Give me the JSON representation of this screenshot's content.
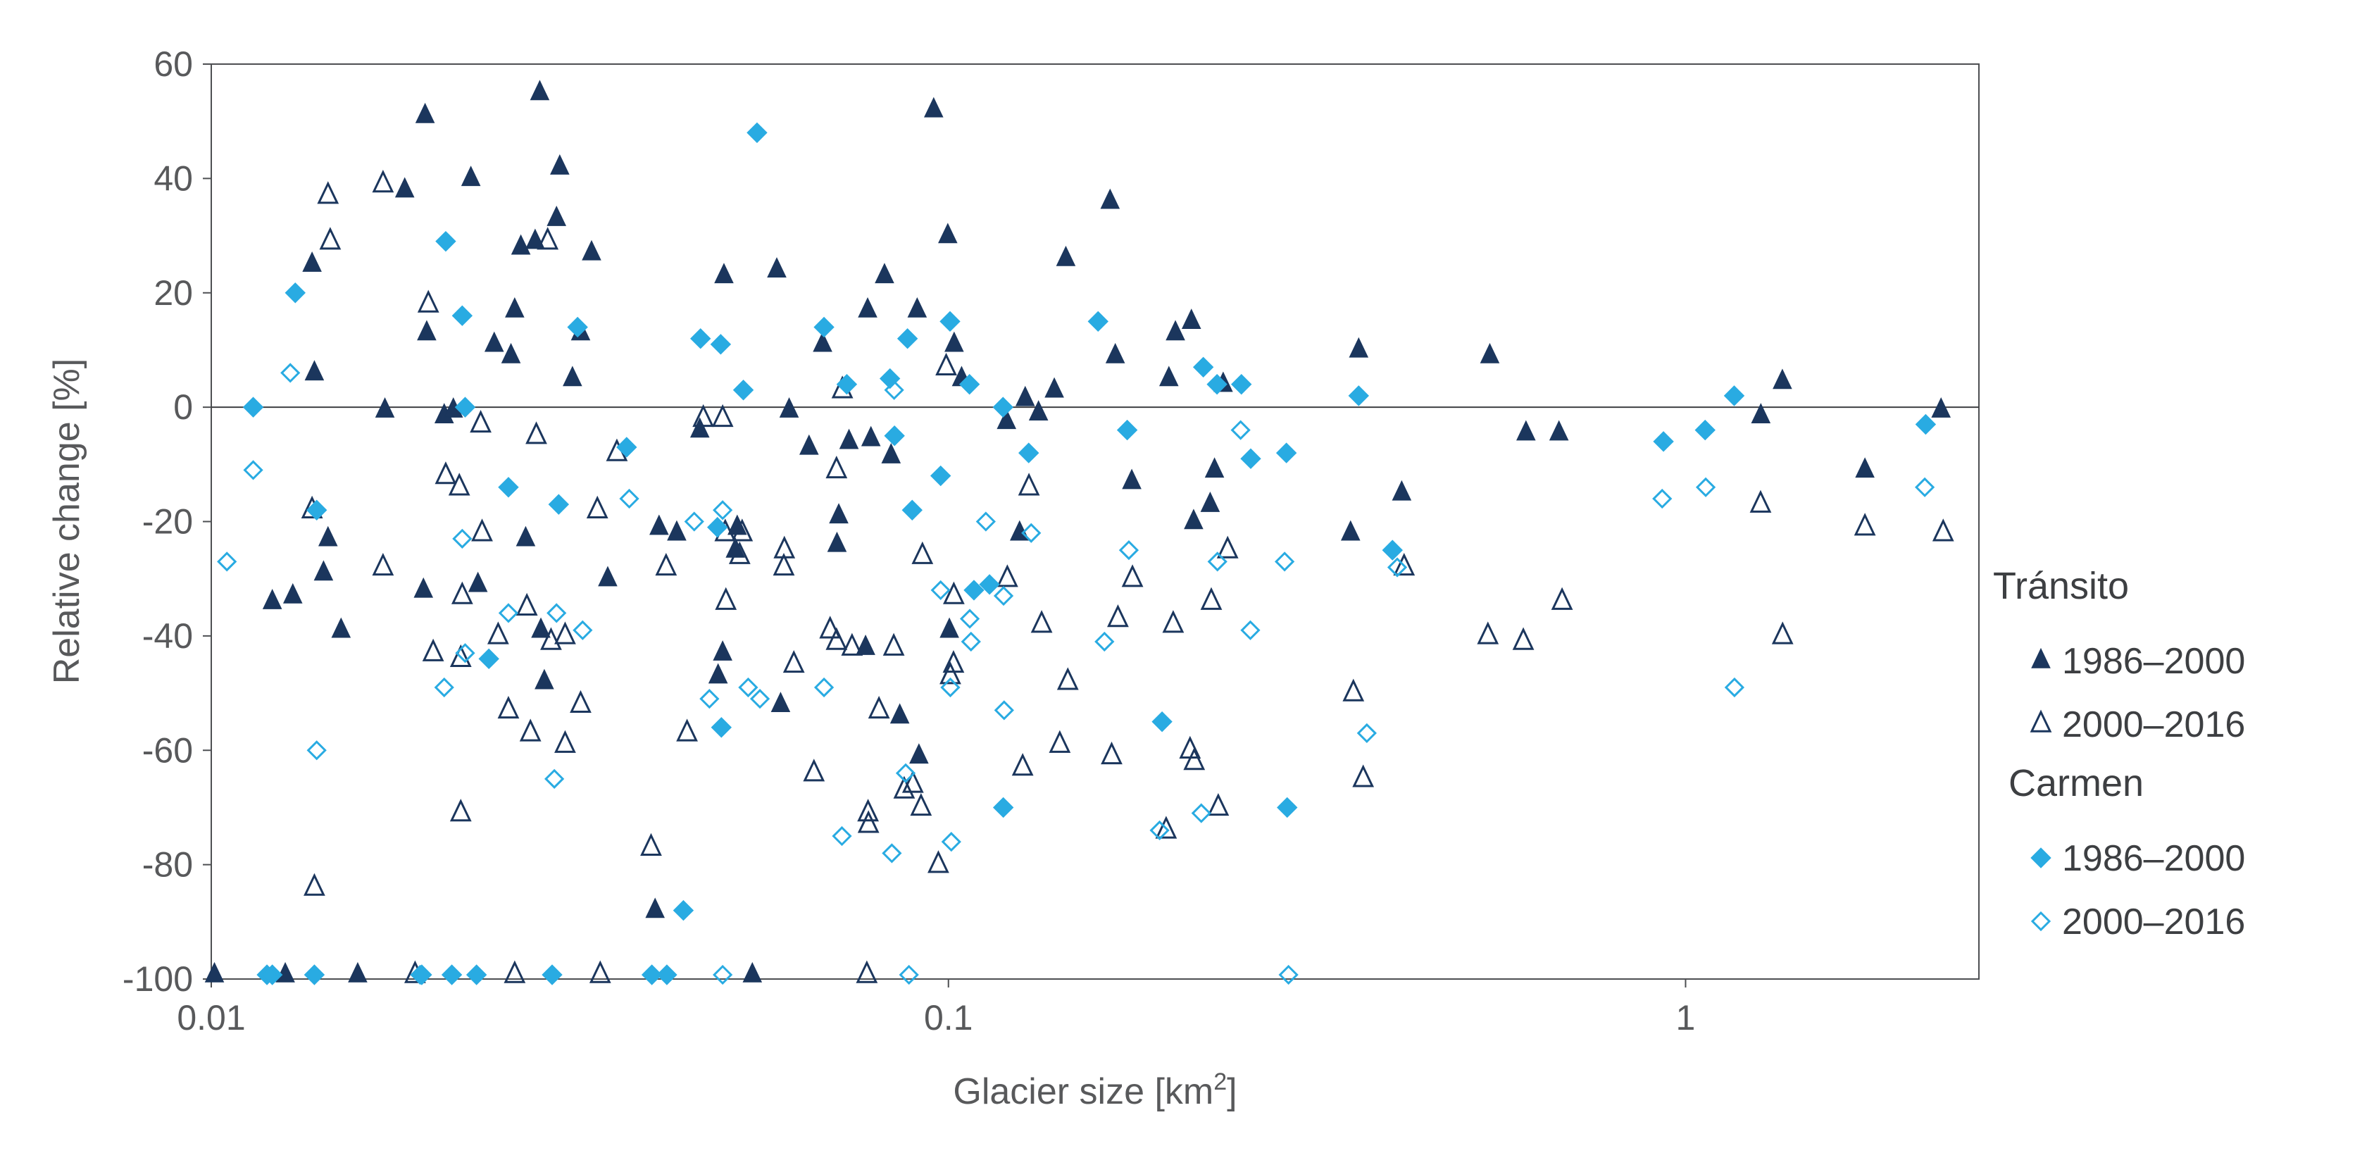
{
  "chart_data": {
    "type": "scatter",
    "title": "",
    "xlabel": "Glacier size [km",
    "xlabel_sup": "2",
    "xlabel_close": "]",
    "ylabel": "Relative change [%]",
    "x_scale": "log",
    "xlim": [
      0.01,
      2.5
    ],
    "ylim": [
      -100,
      60
    ],
    "x_ticks": [
      {
        "value": 0.01,
        "label": "0.01"
      },
      {
        "value": 0.1,
        "label": "0.1"
      },
      {
        "value": 1,
        "label": "1"
      }
    ],
    "y_ticks": [
      {
        "value": 60,
        "label": "60"
      },
      {
        "value": 40,
        "label": "40"
      },
      {
        "value": 20,
        "label": "20"
      },
      {
        "value": 0,
        "label": "0"
      },
      {
        "value": -20,
        "label": "-20"
      },
      {
        "value": -40,
        "label": "-40"
      },
      {
        "value": -60,
        "label": "-60"
      },
      {
        "value": -80,
        "label": "-80"
      },
      {
        "value": -100,
        "label": "-100"
      }
    ],
    "zero_line": true,
    "grid": false,
    "legend_position": "right",
    "legend_groups": [
      {
        "title": "Tránsito",
        "entries": [
          0,
          1
        ]
      },
      {
        "title": "Carmen",
        "entries": [
          2,
          3
        ]
      }
    ],
    "series": [
      {
        "name": "1986–2000",
        "group": "Tránsito",
        "marker": "triangle",
        "filled": true,
        "color": "#1b365d",
        "points": [
          [
            0.0101,
            -100
          ],
          [
            0.0121,
            -34
          ],
          [
            0.0126,
            -100
          ],
          [
            0.0129,
            -33
          ],
          [
            0.0137,
            25
          ],
          [
            0.0138,
            6
          ],
          [
            0.0142,
            -29
          ],
          [
            0.0144,
            -23
          ],
          [
            0.015,
            -39
          ],
          [
            0.0158,
            -100
          ],
          [
            0.0172,
            -0.5
          ],
          [
            0.0183,
            38
          ],
          [
            0.0195,
            51
          ],
          [
            0.0196,
            13
          ],
          [
            0.0194,
            -32
          ],
          [
            0.0207,
            -1.5
          ],
          [
            0.0213,
            -0.5
          ],
          [
            0.0225,
            40
          ],
          [
            0.023,
            -31
          ],
          [
            0.0242,
            11
          ],
          [
            0.0255,
            9
          ],
          [
            0.0258,
            17
          ],
          [
            0.0263,
            28
          ],
          [
            0.0267,
            -23
          ],
          [
            0.0275,
            29
          ],
          [
            0.0279,
            55
          ],
          [
            0.028,
            -39
          ],
          [
            0.0283,
            -48
          ],
          [
            0.0294,
            33
          ],
          [
            0.0297,
            42
          ],
          [
            0.0309,
            5
          ],
          [
            0.0317,
            13
          ],
          [
            0.0328,
            27
          ],
          [
            0.0345,
            -30
          ],
          [
            0.04,
            -88
          ],
          [
            0.0405,
            -21
          ],
          [
            0.0428,
            -22
          ],
          [
            0.046,
            -4
          ],
          [
            0.0487,
            -47
          ],
          [
            0.0494,
            -43
          ],
          [
            0.0496,
            23
          ],
          [
            0.0514,
            -25
          ],
          [
            0.0517,
            -21
          ],
          [
            0.0542,
            -100
          ],
          [
            0.0585,
            24
          ],
          [
            0.0592,
            -52
          ],
          [
            0.0608,
            -0.5
          ],
          [
            0.0647,
            -7
          ],
          [
            0.0675,
            11
          ],
          [
            0.0706,
            -24
          ],
          [
            0.071,
            -19
          ],
          [
            0.0733,
            -6
          ],
          [
            0.0772,
            -42
          ],
          [
            0.0777,
            17
          ],
          [
            0.0785,
            -5.5
          ],
          [
            0.0819,
            23
          ],
          [
            0.0836,
            -8.5
          ],
          [
            0.0859,
            -54
          ],
          [
            0.0907,
            17
          ],
          [
            0.0912,
            -61
          ],
          [
            0.0955,
            52
          ],
          [
            0.0998,
            30
          ],
          [
            0.1003,
            -39
          ],
          [
            0.1018,
            11
          ],
          [
            0.1042,
            5
          ],
          [
            0.1199,
            -2.5
          ],
          [
            0.1249,
            -22
          ],
          [
            0.1271,
            1.5
          ],
          [
            0.1325,
            -1
          ],
          [
            0.1392,
            3
          ],
          [
            0.1443,
            26
          ],
          [
            0.1657,
            36
          ],
          [
            0.1684,
            9
          ],
          [
            0.1773,
            -13
          ],
          [
            0.1991,
            5
          ],
          [
            0.2032,
            13
          ],
          [
            0.2136,
            15
          ],
          [
            0.2151,
            -20
          ],
          [
            0.2265,
            -17
          ],
          [
            0.2296,
            -11
          ],
          [
            0.2359,
            4
          ],
          [
            0.3512,
            -22
          ],
          [
            0.3602,
            10
          ],
          [
            0.412,
            -15
          ],
          [
            0.5425,
            9
          ],
          [
            0.6074,
            -4.5
          ],
          [
            0.6733,
            -4.5
          ],
          [
            1.265,
            -1.5
          ],
          [
            1.353,
            4.5
          ],
          [
            1.751,
            -11
          ],
          [
            2.221,
            -0.5
          ]
        ]
      },
      {
        "name": "2000–2016",
        "group": "Tránsito",
        "marker": "triangle",
        "filled": false,
        "color": "#1b365d",
        "points": [
          [
            0.0137,
            -18
          ],
          [
            0.0138,
            -84
          ],
          [
            0.0144,
            37
          ],
          [
            0.0145,
            29
          ],
          [
            0.0171,
            39
          ],
          [
            0.0171,
            -28
          ],
          [
            0.0189,
            -100
          ],
          [
            0.0197,
            18
          ],
          [
            0.02,
            -43
          ],
          [
            0.0208,
            -12
          ],
          [
            0.0217,
            -14
          ],
          [
            0.0219,
            -33
          ],
          [
            0.0218,
            -71
          ],
          [
            0.0218,
            -44
          ],
          [
            0.0232,
            -3
          ],
          [
            0.0233,
            -22
          ],
          [
            0.0245,
            -40
          ],
          [
            0.0253,
            -53
          ],
          [
            0.0258,
            -100
          ],
          [
            0.0268,
            -35
          ],
          [
            0.0271,
            -57
          ],
          [
            0.0276,
            -5
          ],
          [
            0.0286,
            29
          ],
          [
            0.0289,
            -41
          ],
          [
            0.0302,
            -59
          ],
          [
            0.0302,
            -40
          ],
          [
            0.0317,
            -52
          ],
          [
            0.0334,
            -18
          ],
          [
            0.0337,
            -100
          ],
          [
            0.0355,
            -8
          ],
          [
            0.0395,
            -77
          ],
          [
            0.0414,
            -28
          ],
          [
            0.0442,
            -57
          ],
          [
            0.0465,
            -2
          ],
          [
            0.0494,
            -2
          ],
          [
            0.0498,
            -22
          ],
          [
            0.0499,
            -34
          ],
          [
            0.0525,
            -22
          ],
          [
            0.0521,
            -26
          ],
          [
            0.0599,
            -25
          ],
          [
            0.0598,
            -28
          ],
          [
            0.0617,
            -45
          ],
          [
            0.0657,
            -64
          ],
          [
            0.0691,
            -39
          ],
          [
            0.0705,
            -41
          ],
          [
            0.0705,
            -11
          ],
          [
            0.0718,
            3
          ],
          [
            0.074,
            -42
          ],
          [
            0.0778,
            -71
          ],
          [
            0.0775,
            -100
          ],
          [
            0.0779,
            -73
          ],
          [
            0.0805,
            -53
          ],
          [
            0.0843,
            -42
          ],
          [
            0.0871,
            -67
          ],
          [
            0.0895,
            -66
          ],
          [
            0.0922,
            -26
          ],
          [
            0.0918,
            -70
          ],
          [
            0.0969,
            -80
          ],
          [
            0.0993,
            7
          ],
          [
            0.1006,
            -47
          ],
          [
            0.1017,
            -33
          ],
          [
            0.1016,
            -45
          ],
          [
            0.1202,
            -30
          ],
          [
            0.1261,
            -63
          ],
          [
            0.1286,
            -14
          ],
          [
            0.1338,
            -38
          ],
          [
            0.1416,
            -59
          ],
          [
            0.1452,
            -48
          ],
          [
            0.1665,
            -61
          ],
          [
            0.1698,
            -37
          ],
          [
            0.1777,
            -30
          ],
          [
            0.1974,
            -74
          ],
          [
            0.2018,
            -38
          ],
          [
            0.2127,
            -60
          ],
          [
            0.2155,
            -62
          ],
          [
            0.2273,
            -34
          ],
          [
            0.2323,
            -70
          ],
          [
            0.2392,
            -25
          ],
          [
            0.3543,
            -50
          ],
          [
            0.3653,
            -65
          ],
          [
            0.4151,
            -28
          ],
          [
            0.5393,
            -40
          ],
          [
            0.6024,
            -41
          ],
          [
            0.6799,
            -34
          ],
          [
            1.264,
            -17
          ],
          [
            1.354,
            -40
          ],
          [
            1.751,
            -21
          ],
          [
            2.236,
            -22
          ]
        ]
      },
      {
        "name": "1986–2000",
        "group": "Carmen",
        "marker": "diamond",
        "filled": true,
        "color": "#29abe2",
        "points": [
          [
            0.0114,
            0
          ],
          [
            0.0119,
            -100
          ],
          [
            0.0121,
            -100
          ],
          [
            0.013,
            20
          ],
          [
            0.0138,
            -100
          ],
          [
            0.0139,
            -18
          ],
          [
            0.0193,
            -100
          ],
          [
            0.0208,
            29
          ],
          [
            0.0212,
            -100
          ],
          [
            0.0219,
            16
          ],
          [
            0.0221,
            0
          ],
          [
            0.0229,
            -100
          ],
          [
            0.0238,
            -44
          ],
          [
            0.0253,
            -14
          ],
          [
            0.029,
            -100
          ],
          [
            0.0296,
            -17
          ],
          [
            0.0314,
            14
          ],
          [
            0.0366,
            -7
          ],
          [
            0.0396,
            -100
          ],
          [
            0.0415,
            -100
          ],
          [
            0.0437,
            -88
          ],
          [
            0.0461,
            12
          ],
          [
            0.0486,
            -21
          ],
          [
            0.0492,
            -56
          ],
          [
            0.0491,
            11
          ],
          [
            0.0527,
            3
          ],
          [
            0.055,
            48
          ],
          [
            0.0678,
            14
          ],
          [
            0.0728,
            4
          ],
          [
            0.0833,
            5
          ],
          [
            0.0845,
            -5
          ],
          [
            0.088,
            12
          ],
          [
            0.0893,
            -18
          ],
          [
            0.0976,
            -12
          ],
          [
            0.1005,
            15
          ],
          [
            0.1068,
            4
          ],
          [
            0.1083,
            -32
          ],
          [
            0.1137,
            -31
          ],
          [
            0.1186,
            0
          ],
          [
            0.1187,
            -70
          ],
          [
            0.1285,
            -8
          ],
          [
            0.1596,
            15
          ],
          [
            0.1748,
            -4
          ],
          [
            0.1949,
            -55
          ],
          [
            0.2217,
            7
          ],
          [
            0.2314,
            4
          ],
          [
            0.2497,
            4
          ],
          [
            0.2571,
            -9
          ],
          [
            0.2881,
            -70
          ],
          [
            0.2874,
            -8
          ],
          [
            0.3602,
            2
          ],
          [
            0.4003,
            -25
          ],
          [
            0.9333,
            -6
          ],
          [
            1.063,
            -4
          ],
          [
            1.164,
            2
          ],
          [
            2.117,
            -3
          ]
        ]
      },
      {
        "name": "2000–2016",
        "group": "Carmen",
        "marker": "diamond",
        "filled": false,
        "color": "#29abe2",
        "points": [
          [
            0.0105,
            -27
          ],
          [
            0.0114,
            -11
          ],
          [
            0.0119,
            -100
          ],
          [
            0.0128,
            6
          ],
          [
            0.0139,
            -60
          ],
          [
            0.0192,
            -100
          ],
          [
            0.0207,
            -49
          ],
          [
            0.0219,
            -23
          ],
          [
            0.0221,
            -43
          ],
          [
            0.0253,
            -36
          ],
          [
            0.0292,
            -65
          ],
          [
            0.0294,
            -36
          ],
          [
            0.0319,
            -39
          ],
          [
            0.0369,
            -16
          ],
          [
            0.0452,
            -20
          ],
          [
            0.0474,
            -51
          ],
          [
            0.0494,
            -18
          ],
          [
            0.0494,
            -100
          ],
          [
            0.0535,
            -49
          ],
          [
            0.0555,
            -51
          ],
          [
            0.0678,
            -49
          ],
          [
            0.0717,
            -75
          ],
          [
            0.0844,
            3
          ],
          [
            0.0838,
            -78
          ],
          [
            0.0875,
            -64
          ],
          [
            0.0884,
            -100
          ],
          [
            0.0976,
            -32
          ],
          [
            0.1006,
            -49
          ],
          [
            0.1009,
            -76
          ],
          [
            0.1069,
            -37
          ],
          [
            0.1073,
            -41
          ],
          [
            0.1124,
            -20
          ],
          [
            0.1188,
            -33
          ],
          [
            0.119,
            -53
          ],
          [
            0.1295,
            -22
          ],
          [
            0.1628,
            -41
          ],
          [
            0.1757,
            -25
          ],
          [
            0.1934,
            -74
          ],
          [
            0.2203,
            -71
          ],
          [
            0.2317,
            -27
          ],
          [
            0.2491,
            -4
          ],
          [
            0.2568,
            -39
          ],
          [
            0.2858,
            -27
          ],
          [
            0.2893,
            -100
          ],
          [
            0.3695,
            -57
          ],
          [
            0.4063,
            -28
          ],
          [
            0.9295,
            -16
          ],
          [
            1.065,
            -14
          ],
          [
            1.165,
            -49
          ],
          [
            2.111,
            -14
          ]
        ]
      }
    ]
  }
}
